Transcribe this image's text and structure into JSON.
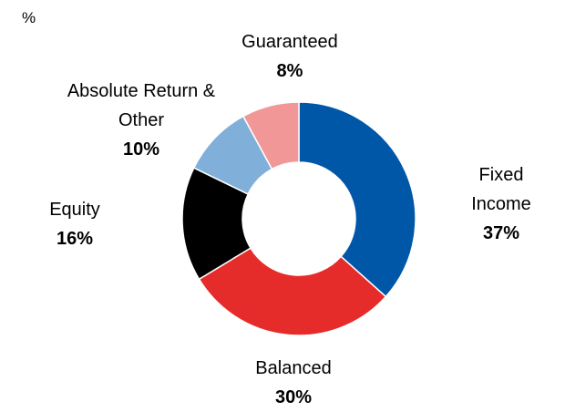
{
  "chart_data": {
    "type": "donut",
    "unit": "%",
    "categories": [
      "Fixed Income",
      "Balanced",
      "Equity",
      "Absolute Return & Other",
      "Guaranteed"
    ],
    "values": [
      37,
      30,
      16,
      10,
      8
    ],
    "value_labels": [
      "37%",
      "30%",
      "16%",
      "10%",
      "8%"
    ],
    "colors": [
      "#0057a8",
      "#e62b2b",
      "#000000",
      "#80b0d9",
      "#f29797"
    ]
  }
}
